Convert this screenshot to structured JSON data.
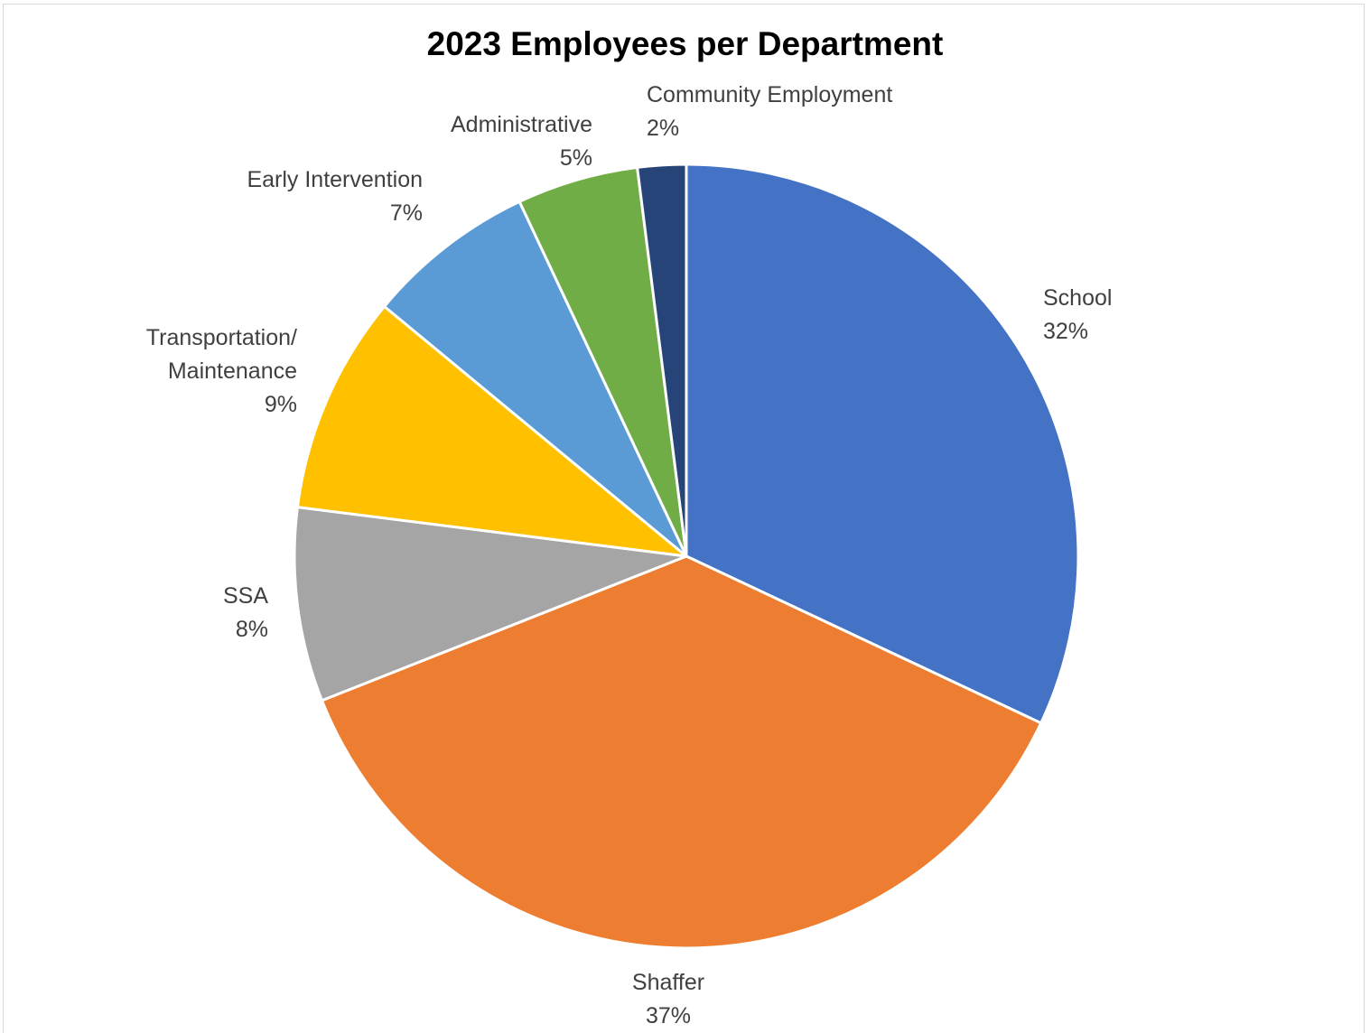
{
  "chart_data": {
    "type": "pie",
    "title": "2023 Employees per Department",
    "slices": [
      {
        "label": "School",
        "value": 32,
        "value_label": "32%",
        "color": "#4472c4"
      },
      {
        "label": "Shaffer",
        "value": 37,
        "value_label": "37%",
        "color": "#ed7d31"
      },
      {
        "label": "SSA",
        "value": 8,
        "value_label": "8%",
        "color": "#a5a5a5"
      },
      {
        "label": "Transportation/ Maintenance",
        "value": 9,
        "value_label": "9%",
        "color": "#ffc000"
      },
      {
        "label": "Early Intervention",
        "value": 7,
        "value_label": "7%",
        "color": "#5b9bd5"
      },
      {
        "label": "Administrative",
        "value": 5,
        "value_label": "5%",
        "color": "#70ad47"
      },
      {
        "label": "Community Employment",
        "value": 2,
        "value_label": "2%",
        "color": "#264478"
      }
    ],
    "legend": "none",
    "label_placement": "outside"
  }
}
